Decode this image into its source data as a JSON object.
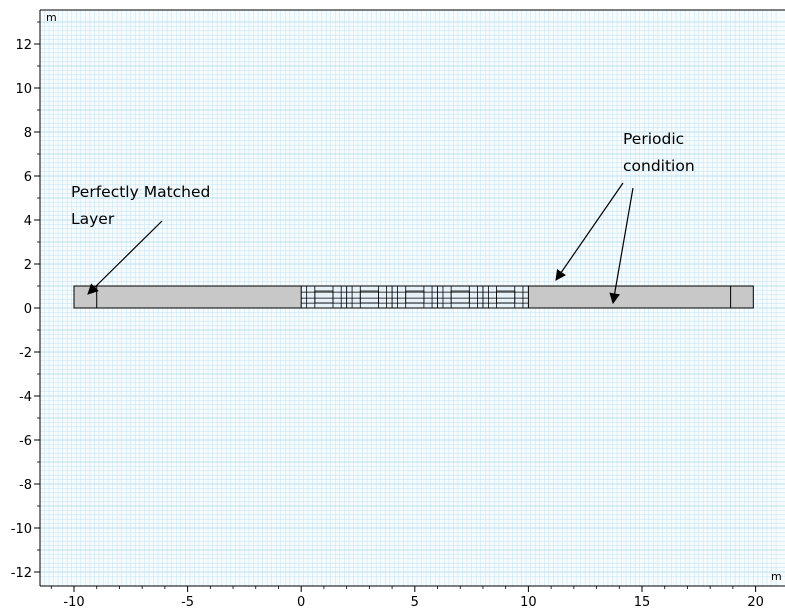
{
  "view": {
    "x_unit": "m",
    "y_unit": "m",
    "x_range": [
      -11.5,
      21
    ],
    "y_range": [
      -12.2,
      13.1
    ],
    "x_ticks": [
      "-10",
      "-5",
      "0",
      "5",
      "10",
      "15",
      "20"
    ],
    "x_tick_values": [
      -10,
      -5,
      0,
      5,
      10,
      15,
      20
    ],
    "y_ticks": [
      "12",
      "10",
      "8",
      "6",
      "4",
      "2",
      "0",
      "-2",
      "-4",
      "-6",
      "-8",
      "-10",
      "-12"
    ],
    "y_tick_values": [
      12,
      10,
      8,
      6,
      4,
      2,
      0,
      -2,
      -4,
      -6,
      -8,
      -10,
      -12
    ],
    "grid": true,
    "colors": {
      "background": "#f6fbfe",
      "grid": "#bfe0ef",
      "domain_fill": "#c8c8c8",
      "outline": "#000000"
    }
  },
  "geometry": {
    "domain_x": [
      -10,
      19.9
    ],
    "domain_y": [
      0,
      1
    ],
    "pml_left_x": [
      -10,
      -9
    ],
    "pml_right_x": [
      18.9,
      19.9
    ],
    "structured_region_x": [
      0,
      10
    ]
  },
  "annotations": {
    "pml_label_line1": "Perfectly Matched",
    "pml_label_line2": "Layer",
    "periodic_label_line1": "Periodic",
    "periodic_label_line2": "condition"
  }
}
